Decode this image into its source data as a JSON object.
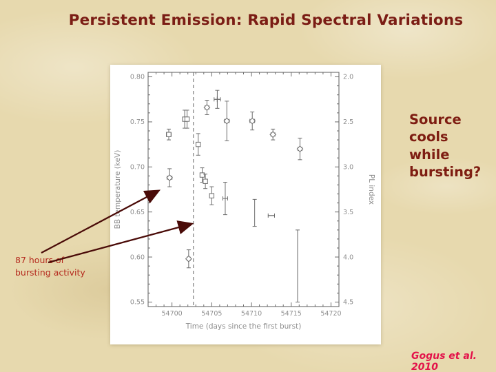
{
  "slide": {
    "title": "Persistent Emission: Rapid Spectral Variations",
    "right_note": "Source\ncools\nwhile\nbursting?",
    "left_note": "87 hours of\nbursting activity",
    "credit": "Gogus et al. 2010"
  },
  "colors": {
    "background": "#e7d9ae",
    "title_text": "#7b1d15",
    "note_text": "#7e1d12",
    "left_note_text": "#b52a1e",
    "credit_text": "#e3134a",
    "arrow": "#4a0b08",
    "plot_ink": "#6a6a6a",
    "plot_text": "#8d8d8d"
  },
  "chart_data": {
    "type": "scatter",
    "title": "",
    "xlabel": "Time (days since the first burst)",
    "ylabel_left": "BB temperature (keV)",
    "ylabel_right": "PL index",
    "xlim": [
      54697,
      54721
    ],
    "ylim_left": [
      0.545,
      0.805
    ],
    "x_ticks": [
      54700,
      54705,
      54710,
      54715,
      54720
    ],
    "y_ticks_left": [
      0.8,
      0.75,
      0.7,
      0.65,
      0.6,
      0.55
    ],
    "y_ticks_right": [
      2.0,
      2.5,
      3.0,
      3.5,
      4.0,
      4.5
    ],
    "dashed_vline_x": 54702.7,
    "grid": false,
    "legend": false,
    "series": [
      {
        "name": "diamond markers",
        "marker": "diamond",
        "points": [
          {
            "x": 54704.4,
            "y": 0.766,
            "yerr": 0.008,
            "xerr": 0.25
          },
          {
            "x": 54706.9,
            "y": 0.751,
            "yerr": 0.022,
            "xerr": 0.3
          },
          {
            "x": 54710.1,
            "y": 0.751,
            "yerr": 0.01,
            "xerr": 0.3
          },
          {
            "x": 54712.7,
            "y": 0.736,
            "yerr": 0.006,
            "xerr": 0.25
          },
          {
            "x": 54716.1,
            "y": 0.72,
            "yerr": 0.012,
            "xerr": 0.25
          },
          {
            "x": 54699.7,
            "y": 0.688,
            "yerr": 0.01,
            "xerr": 0.3
          },
          {
            "x": 54702.1,
            "y": 0.598,
            "yerr": 0.01,
            "xerr": 0.2
          }
        ]
      },
      {
        "name": "square markers",
        "marker": "square",
        "points": [
          {
            "x": 54699.6,
            "y": 0.736,
            "yerr": 0.006,
            "xerr": 0.3
          },
          {
            "x": 54701.6,
            "y": 0.753,
            "yerr": 0.01,
            "xerr": 0.15
          },
          {
            "x": 54701.9,
            "y": 0.753,
            "yerr": 0.01,
            "xerr": 0.15
          },
          {
            "x": 54703.3,
            "y": 0.725,
            "yerr": 0.012,
            "xerr": 0.0
          },
          {
            "x": 54703.8,
            "y": 0.691,
            "yerr": 0.008,
            "xerr": 0.2
          },
          {
            "x": 54704.2,
            "y": 0.684,
            "yerr": 0.008,
            "xerr": 0.2
          },
          {
            "x": 54705.0,
            "y": 0.668,
            "yerr": 0.01,
            "xerr": 0.2
          }
        ]
      },
      {
        "name": "cross marker",
        "marker": "plus",
        "points": [
          {
            "x": 54705.7,
            "y": 0.775,
            "yerr": 0.01,
            "xerr": 0.4
          }
        ]
      },
      {
        "name": "error-bar only points",
        "marker": "bar",
        "points": [
          {
            "x": 54706.7,
            "y": 0.665,
            "yerr": 0.018,
            "xerr": 0.3
          },
          {
            "x": 54710.4,
            "y": 0.649,
            "yerr": 0.015,
            "xerr": 0.0
          },
          {
            "x": 54715.8,
            "y": 0.59,
            "yerr": 0.04,
            "xerr": 0.0
          }
        ]
      },
      {
        "name": "dash marker",
        "marker": "dash",
        "points": [
          {
            "x": 54712.5,
            "y": 0.646,
            "yerr": 0.0,
            "xerr": 0.4
          }
        ]
      }
    ]
  }
}
